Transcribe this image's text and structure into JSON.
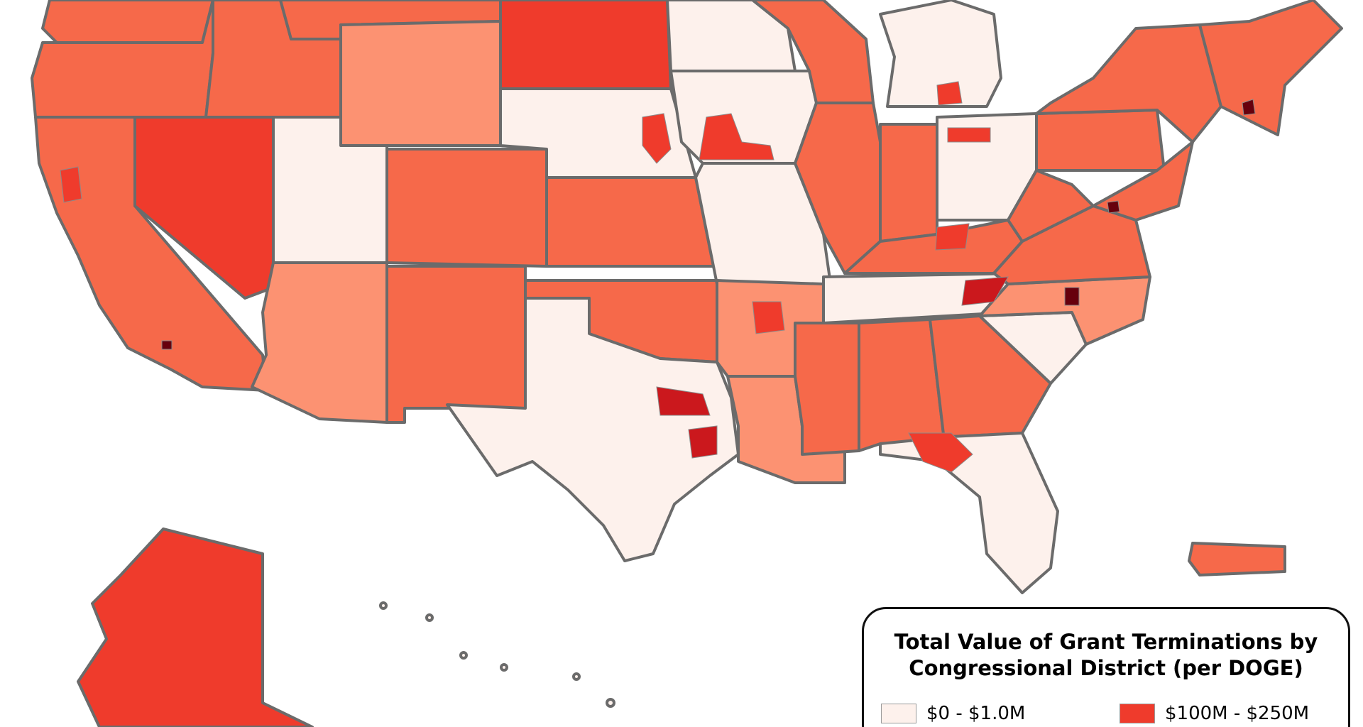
{
  "legend": {
    "title_line1": "Total Value of Grant Terminations by",
    "title_line2": "Congressional District (per DOGE)",
    "items": [
      {
        "label": "$0 - $1.0M",
        "color": "#fdf1ec"
      },
      {
        "label": "$100M - $250M",
        "color": "#ef3b2c"
      }
    ]
  },
  "palette": {
    "bin_0_to_1M": "#fdf1ec",
    "bin_low": "#fcbba1",
    "bin_mid": "#fc9272",
    "bin_high": "#f6694a",
    "bin_100M_to_250M": "#ef3b2c",
    "bin_top": "#cb181d",
    "bin_max": "#67000d",
    "state_border": "#6b6b6b",
    "district_border": "#8a8a8a"
  }
}
